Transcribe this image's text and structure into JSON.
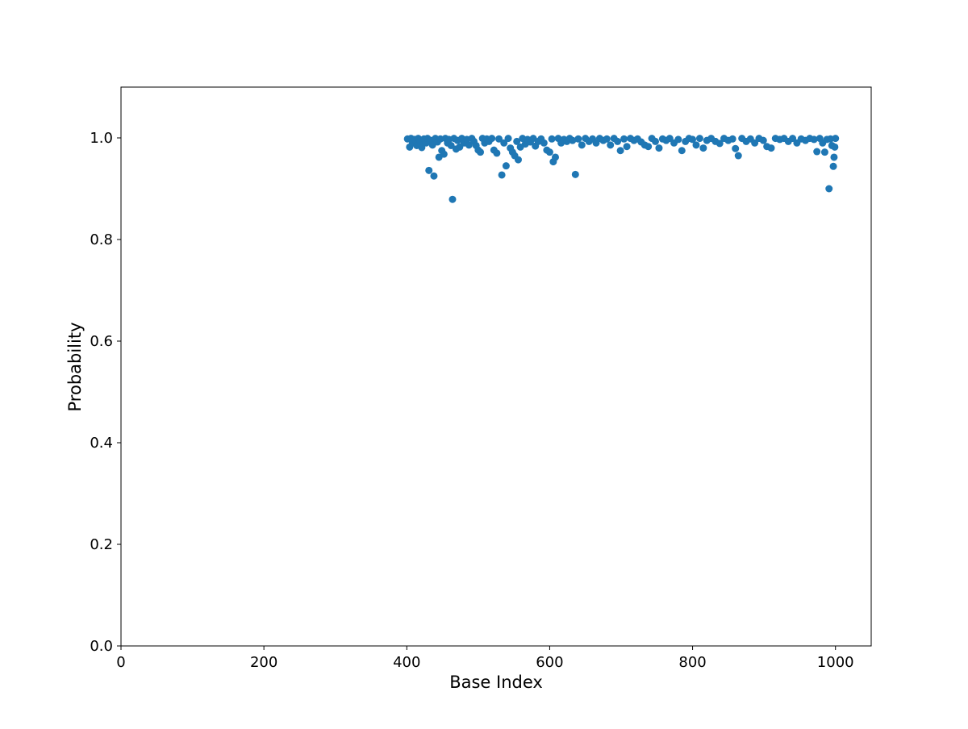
{
  "chart_data": {
    "type": "scatter",
    "title": "",
    "xlabel": "Base Index",
    "ylabel": "Probability",
    "xlim": [
      0,
      1050
    ],
    "ylim": [
      0,
      1.1
    ],
    "x_ticks": [
      0,
      200,
      400,
      600,
      800,
      1000
    ],
    "x_tick_labels": [
      "0",
      "200",
      "400",
      "600",
      "800",
      "1000"
    ],
    "y_ticks": [
      0.0,
      0.2,
      0.4,
      0.6,
      0.8,
      1.0
    ],
    "y_tick_labels": [
      "0.0",
      "0.2",
      "0.4",
      "0.6",
      "0.8",
      "1.0"
    ],
    "grid": false,
    "legend": "none",
    "marker_color": "#1f77b4",
    "x_range_of_points": [
      401,
      1000
    ],
    "series": [
      {
        "points": [
          {
            "x": 401,
            "y": 0.998
          },
          {
            "x": 404,
            "y": 0.982
          },
          {
            "x": 406,
            "y": 0.999
          },
          {
            "x": 408,
            "y": 0.99
          },
          {
            "x": 411,
            "y": 0.997
          },
          {
            "x": 414,
            "y": 0.985
          },
          {
            "x": 416,
            "y": 0.999
          },
          {
            "x": 419,
            "y": 0.993
          },
          {
            "x": 421,
            "y": 0.981
          },
          {
            "x": 424,
            "y": 0.998
          },
          {
            "x": 427,
            "y": 0.99
          },
          {
            "x": 429,
            "y": 0.999
          },
          {
            "x": 431,
            "y": 0.936
          },
          {
            "x": 434,
            "y": 0.995
          },
          {
            "x": 436,
            "y": 0.986
          },
          {
            "x": 438,
            "y": 0.925
          },
          {
            "x": 440,
            "y": 0.999
          },
          {
            "x": 443,
            "y": 0.992
          },
          {
            "x": 445,
            "y": 0.962
          },
          {
            "x": 447,
            "y": 0.998
          },
          {
            "x": 449,
            "y": 0.975
          },
          {
            "x": 452,
            "y": 0.968
          },
          {
            "x": 454,
            "y": 0.999
          },
          {
            "x": 457,
            "y": 0.99
          },
          {
            "x": 459,
            "y": 0.997
          },
          {
            "x": 462,
            "y": 0.985
          },
          {
            "x": 464,
            "y": 0.879
          },
          {
            "x": 466,
            "y": 0.999
          },
          {
            "x": 469,
            "y": 0.978
          },
          {
            "x": 471,
            "y": 0.995
          },
          {
            "x": 474,
            "y": 0.982
          },
          {
            "x": 477,
            "y": 0.999
          },
          {
            "x": 480,
            "y": 0.99
          },
          {
            "x": 484,
            "y": 0.997
          },
          {
            "x": 487,
            "y": 0.986
          },
          {
            "x": 491,
            "y": 0.999
          },
          {
            "x": 494,
            "y": 0.993
          },
          {
            "x": 497,
            "y": 0.985
          },
          {
            "x": 500,
            "y": 0.976
          },
          {
            "x": 503,
            "y": 0.972
          },
          {
            "x": 506,
            "y": 0.999
          },
          {
            "x": 509,
            "y": 0.99
          },
          {
            "x": 512,
            "y": 0.998
          },
          {
            "x": 515,
            "y": 0.993
          },
          {
            "x": 519,
            "y": 0.999
          },
          {
            "x": 522,
            "y": 0.976
          },
          {
            "x": 526,
            "y": 0.97
          },
          {
            "x": 529,
            "y": 0.998
          },
          {
            "x": 533,
            "y": 0.927
          },
          {
            "x": 536,
            "y": 0.99
          },
          {
            "x": 539,
            "y": 0.945
          },
          {
            "x": 542,
            "y": 0.999
          },
          {
            "x": 545,
            "y": 0.98
          },
          {
            "x": 548,
            "y": 0.972
          },
          {
            "x": 551,
            "y": 0.965
          },
          {
            "x": 554,
            "y": 0.993
          },
          {
            "x": 556,
            "y": 0.957
          },
          {
            "x": 559,
            "y": 0.982
          },
          {
            "x": 562,
            "y": 0.999
          },
          {
            "x": 566,
            "y": 0.988
          },
          {
            "x": 569,
            "y": 0.997
          },
          {
            "x": 573,
            "y": 0.992
          },
          {
            "x": 577,
            "y": 0.999
          },
          {
            "x": 580,
            "y": 0.984
          },
          {
            "x": 584,
            "y": 0.993
          },
          {
            "x": 588,
            "y": 0.998
          },
          {
            "x": 592,
            "y": 0.99
          },
          {
            "x": 596,
            "y": 0.976
          },
          {
            "x": 600,
            "y": 0.972
          },
          {
            "x": 603,
            "y": 0.998
          },
          {
            "x": 605,
            "y": 0.953
          },
          {
            "x": 608,
            "y": 0.962
          },
          {
            "x": 612,
            "y": 0.999
          },
          {
            "x": 616,
            "y": 0.99
          },
          {
            "x": 620,
            "y": 0.997
          },
          {
            "x": 624,
            "y": 0.993
          },
          {
            "x": 628,
            "y": 0.999
          },
          {
            "x": 632,
            "y": 0.995
          },
          {
            "x": 636,
            "y": 0.928
          },
          {
            "x": 640,
            "y": 0.998
          },
          {
            "x": 645,
            "y": 0.986
          },
          {
            "x": 650,
            "y": 0.999
          },
          {
            "x": 655,
            "y": 0.993
          },
          {
            "x": 660,
            "y": 0.998
          },
          {
            "x": 665,
            "y": 0.99
          },
          {
            "x": 670,
            "y": 0.999
          },
          {
            "x": 675,
            "y": 0.995
          },
          {
            "x": 680,
            "y": 0.998
          },
          {
            "x": 685,
            "y": 0.986
          },
          {
            "x": 690,
            "y": 0.999
          },
          {
            "x": 695,
            "y": 0.993
          },
          {
            "x": 699,
            "y": 0.975
          },
          {
            "x": 704,
            "y": 0.998
          },
          {
            "x": 708,
            "y": 0.983
          },
          {
            "x": 713,
            "y": 0.999
          },
          {
            "x": 718,
            "y": 0.995
          },
          {
            "x": 723,
            "y": 0.998
          },
          {
            "x": 728,
            "y": 0.992
          },
          {
            "x": 733,
            "y": 0.986
          },
          {
            "x": 738,
            "y": 0.983
          },
          {
            "x": 743,
            "y": 0.999
          },
          {
            "x": 748,
            "y": 0.993
          },
          {
            "x": 753,
            "y": 0.98
          },
          {
            "x": 758,
            "y": 0.998
          },
          {
            "x": 763,
            "y": 0.995
          },
          {
            "x": 768,
            "y": 0.999
          },
          {
            "x": 774,
            "y": 0.99
          },
          {
            "x": 780,
            "y": 0.997
          },
          {
            "x": 785,
            "y": 0.975
          },
          {
            "x": 790,
            "y": 0.993
          },
          {
            "x": 795,
            "y": 0.999
          },
          {
            "x": 800,
            "y": 0.997
          },
          {
            "x": 805,
            "y": 0.986
          },
          {
            "x": 810,
            "y": 0.999
          },
          {
            "x": 815,
            "y": 0.98
          },
          {
            "x": 820,
            "y": 0.995
          },
          {
            "x": 826,
            "y": 0.999
          },
          {
            "x": 832,
            "y": 0.993
          },
          {
            "x": 838,
            "y": 0.989
          },
          {
            "x": 844,
            "y": 0.999
          },
          {
            "x": 850,
            "y": 0.995
          },
          {
            "x": 856,
            "y": 0.998
          },
          {
            "x": 860,
            "y": 0.979
          },
          {
            "x": 864,
            "y": 0.965
          },
          {
            "x": 869,
            "y": 0.999
          },
          {
            "x": 875,
            "y": 0.993
          },
          {
            "x": 881,
            "y": 0.998
          },
          {
            "x": 887,
            "y": 0.99
          },
          {
            "x": 893,
            "y": 0.999
          },
          {
            "x": 899,
            "y": 0.995
          },
          {
            "x": 904,
            "y": 0.983
          },
          {
            "x": 910,
            "y": 0.98
          },
          {
            "x": 916,
            "y": 0.999
          },
          {
            "x": 922,
            "y": 0.997
          },
          {
            "x": 928,
            "y": 0.999
          },
          {
            "x": 934,
            "y": 0.993
          },
          {
            "x": 940,
            "y": 0.999
          },
          {
            "x": 946,
            "y": 0.99
          },
          {
            "x": 952,
            "y": 0.998
          },
          {
            "x": 958,
            "y": 0.995
          },
          {
            "x": 964,
            "y": 0.999
          },
          {
            "x": 970,
            "y": 0.997
          },
          {
            "x": 974,
            "y": 0.973
          },
          {
            "x": 978,
            "y": 0.999
          },
          {
            "x": 982,
            "y": 0.99
          },
          {
            "x": 985,
            "y": 0.972
          },
          {
            "x": 988,
            "y": 0.997
          },
          {
            "x": 991,
            "y": 0.9
          },
          {
            "x": 993,
            "y": 0.998
          },
          {
            "x": 995,
            "y": 0.985
          },
          {
            "x": 997,
            "y": 0.944
          },
          {
            "x": 998,
            "y": 0.962
          },
          {
            "x": 999,
            "y": 0.982
          },
          {
            "x": 1000,
            "y": 0.999
          }
        ]
      }
    ]
  }
}
